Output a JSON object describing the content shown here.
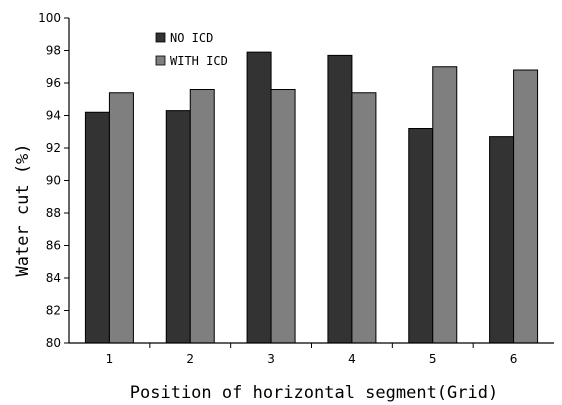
{
  "chart_data": {
    "type": "bar",
    "title": "",
    "xlabel": "Position of horizontal segment(Grid)",
    "ylabel": "Water cut (%)",
    "categories": [
      "1",
      "2",
      "3",
      "4",
      "5",
      "6"
    ],
    "ylim": [
      80,
      100
    ],
    "yticks": [
      80,
      82,
      84,
      86,
      88,
      90,
      92,
      94,
      96,
      98,
      100
    ],
    "grid": false,
    "legend_position": "top-left",
    "series": [
      {
        "name": "NO ICD",
        "color": "#333333",
        "values": [
          94.2,
          94.3,
          97.9,
          97.7,
          93.2,
          92.7
        ]
      },
      {
        "name": "WITH ICD",
        "color": "#7f7f7f",
        "values": [
          95.4,
          95.6,
          95.6,
          95.4,
          97.0,
          96.8
        ]
      }
    ]
  }
}
